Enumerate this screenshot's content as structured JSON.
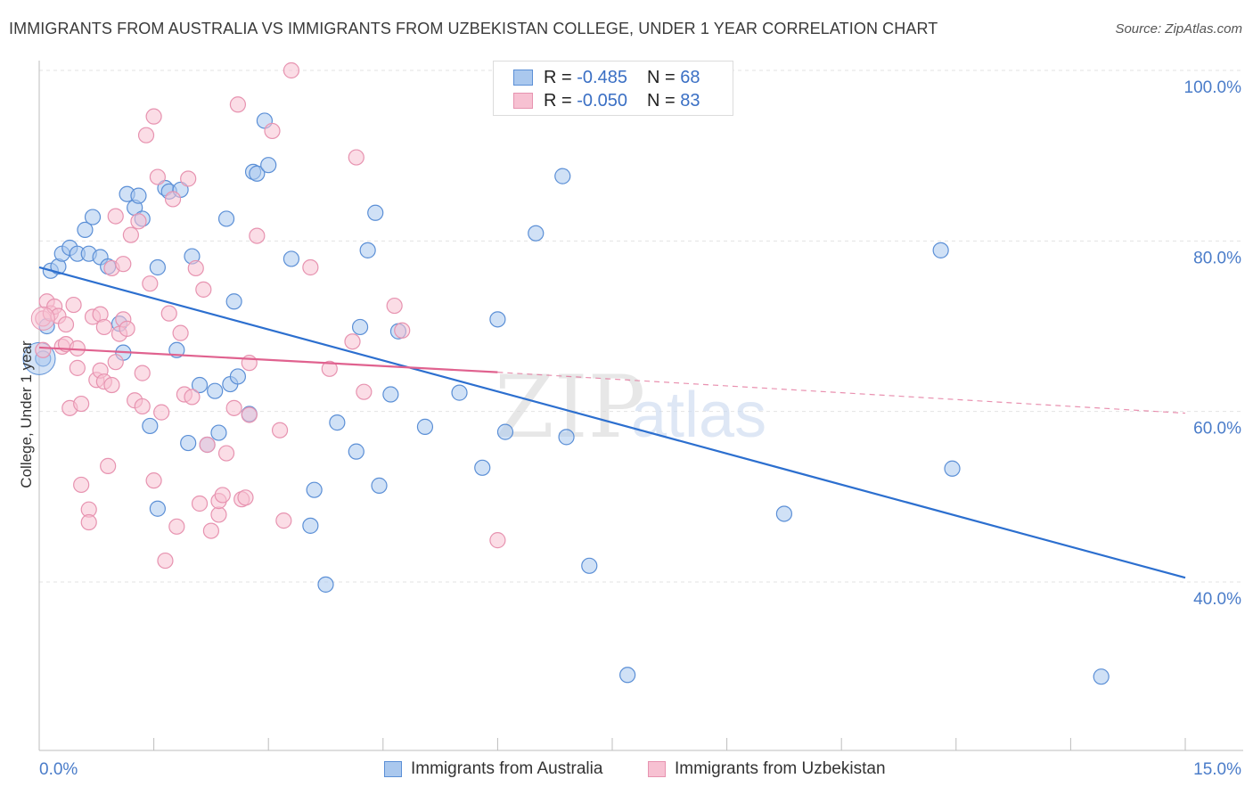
{
  "title": "IMMIGRANTS FROM AUSTRALIA VS IMMIGRANTS FROM UZBEKISTAN COLLEGE, UNDER 1 YEAR CORRELATION CHART",
  "source": "Source: ZipAtlas.com",
  "legend": {
    "australia": {
      "r_label": "R =",
      "r_value": "-0.485",
      "n_label": "N =",
      "n_value": "68"
    },
    "uzbekistan": {
      "r_label": "R =",
      "r_value": "-0.050",
      "n_label": "N =",
      "n_value": "83"
    }
  },
  "colors": {
    "australia_fill": "#aac8ee",
    "australia_stroke": "#5b8fd6",
    "australia_line": "#2c6fcf",
    "uzbekistan_fill": "#f7c1d2",
    "uzbekistan_stroke": "#e793b0",
    "uzbekistan_line": "#e0628f",
    "tick_text": "#4a7cc9"
  },
  "chart_data": {
    "type": "scatter",
    "xlabel": "",
    "ylabel": "College, Under 1 year",
    "x_tick_labels": [
      "0.0%",
      "15.0%"
    ],
    "y_tick_labels": [
      "100.0%",
      "80.0%",
      "60.0%",
      "40.0%"
    ],
    "xlim": [
      0,
      15
    ],
    "ylim": [
      22,
      102
    ],
    "grid": true,
    "legend_position": "top-center",
    "watermark": "ZIPatlas",
    "series": [
      {
        "name": "Immigrants from Australia",
        "trend": {
          "x": [
            0.0,
            15.0
          ],
          "y": [
            76.9,
            40.5
          ]
        },
        "points": [
          [
            0.05,
            66.2
          ],
          [
            0.1,
            70.0
          ],
          [
            0.15,
            76.5
          ],
          [
            0.25,
            77.0
          ],
          [
            0.3,
            78.5
          ],
          [
            0.4,
            79.2
          ],
          [
            0.5,
            78.5
          ],
          [
            0.6,
            81.3
          ],
          [
            0.65,
            78.5
          ],
          [
            0.7,
            82.8
          ],
          [
            0.8,
            78.1
          ],
          [
            0.9,
            77.0
          ],
          [
            1.05,
            70.3
          ],
          [
            1.1,
            66.9
          ],
          [
            1.15,
            85.5
          ],
          [
            1.25,
            83.9
          ],
          [
            1.3,
            85.3
          ],
          [
            1.35,
            82.6
          ],
          [
            1.45,
            58.3
          ],
          [
            1.55,
            76.9
          ],
          [
            1.55,
            48.6
          ],
          [
            1.65,
            86.2
          ],
          [
            1.7,
            85.8
          ],
          [
            1.8,
            67.2
          ],
          [
            1.85,
            86.0
          ],
          [
            1.95,
            56.3
          ],
          [
            2.0,
            78.2
          ],
          [
            2.1,
            63.1
          ],
          [
            2.2,
            56.1
          ],
          [
            2.3,
            62.4
          ],
          [
            2.35,
            57.5
          ],
          [
            2.45,
            82.6
          ],
          [
            2.5,
            63.2
          ],
          [
            2.55,
            72.9
          ],
          [
            2.6,
            64.1
          ],
          [
            2.75,
            59.7
          ],
          [
            2.8,
            88.1
          ],
          [
            2.85,
            87.9
          ],
          [
            2.95,
            94.1
          ],
          [
            3.0,
            88.9
          ],
          [
            3.3,
            77.9
          ],
          [
            3.55,
            46.6
          ],
          [
            3.6,
            50.8
          ],
          [
            3.75,
            39.7
          ],
          [
            3.9,
            58.7
          ],
          [
            4.15,
            55.3
          ],
          [
            4.2,
            69.9
          ],
          [
            4.3,
            78.9
          ],
          [
            4.4,
            83.3
          ],
          [
            4.45,
            51.3
          ],
          [
            4.6,
            62.0
          ],
          [
            4.7,
            69.4
          ],
          [
            5.05,
            58.2
          ],
          [
            5.5,
            62.2
          ],
          [
            5.8,
            53.4
          ],
          [
            6.0,
            70.8
          ],
          [
            6.1,
            57.6
          ],
          [
            6.5,
            80.9
          ],
          [
            6.85,
            87.6
          ],
          [
            6.9,
            57.0
          ],
          [
            7.2,
            41.9
          ],
          [
            7.7,
            29.1
          ],
          [
            9.75,
            48.0
          ],
          [
            11.8,
            78.9
          ],
          [
            11.95,
            53.3
          ],
          [
            13.9,
            28.9
          ]
        ]
      },
      {
        "name": "Immigrants from Uzbekistan",
        "trend": {
          "x": [
            0.0,
            6.0
          ],
          "y": [
            67.5,
            64.6
          ]
        },
        "trend_dashed": {
          "x": [
            6.0,
            15.0
          ],
          "y": [
            64.6,
            59.8
          ]
        },
        "points": [
          [
            0.05,
            70.9
          ],
          [
            0.05,
            67.2
          ],
          [
            0.1,
            72.9
          ],
          [
            0.15,
            71.5
          ],
          [
            0.2,
            72.3
          ],
          [
            0.25,
            71.2
          ],
          [
            0.3,
            67.6
          ],
          [
            0.35,
            67.9
          ],
          [
            0.35,
            70.2
          ],
          [
            0.4,
            60.4
          ],
          [
            0.45,
            72.5
          ],
          [
            0.5,
            67.4
          ],
          [
            0.5,
            65.1
          ],
          [
            0.55,
            60.9
          ],
          [
            0.55,
            51.4
          ],
          [
            0.65,
            48.5
          ],
          [
            0.65,
            47.0
          ],
          [
            0.7,
            71.1
          ],
          [
            0.75,
            63.7
          ],
          [
            0.8,
            71.4
          ],
          [
            0.8,
            64.8
          ],
          [
            0.85,
            69.9
          ],
          [
            0.85,
            63.5
          ],
          [
            0.9,
            53.6
          ],
          [
            0.95,
            76.8
          ],
          [
            0.95,
            63.1
          ],
          [
            1.0,
            82.9
          ],
          [
            1.0,
            65.8
          ],
          [
            1.05,
            69.1
          ],
          [
            1.1,
            77.3
          ],
          [
            1.1,
            70.8
          ],
          [
            1.15,
            69.7
          ],
          [
            1.2,
            80.7
          ],
          [
            1.25,
            61.3
          ],
          [
            1.3,
            82.3
          ],
          [
            1.35,
            64.5
          ],
          [
            1.35,
            60.6
          ],
          [
            1.4,
            92.4
          ],
          [
            1.45,
            75.0
          ],
          [
            1.5,
            51.9
          ],
          [
            1.5,
            94.6
          ],
          [
            1.55,
            87.5
          ],
          [
            1.6,
            59.9
          ],
          [
            1.65,
            42.5
          ],
          [
            1.7,
            71.5
          ],
          [
            1.75,
            84.9
          ],
          [
            1.8,
            46.5
          ],
          [
            1.85,
            69.2
          ],
          [
            1.9,
            62.0
          ],
          [
            1.95,
            87.3
          ],
          [
            2.0,
            61.7
          ],
          [
            2.05,
            76.8
          ],
          [
            2.1,
            49.2
          ],
          [
            2.15,
            74.3
          ],
          [
            2.2,
            56.1
          ],
          [
            2.25,
            46.0
          ],
          [
            2.35,
            47.9
          ],
          [
            2.35,
            49.5
          ],
          [
            2.4,
            50.2
          ],
          [
            2.45,
            55.1
          ],
          [
            2.55,
            60.4
          ],
          [
            2.6,
            96.0
          ],
          [
            2.65,
            49.7
          ],
          [
            2.7,
            49.9
          ],
          [
            2.75,
            59.6
          ],
          [
            2.75,
            65.7
          ],
          [
            2.85,
            80.6
          ],
          [
            3.05,
            92.9
          ],
          [
            3.15,
            57.8
          ],
          [
            3.2,
            47.2
          ],
          [
            3.3,
            100.0
          ],
          [
            3.55,
            76.9
          ],
          [
            3.8,
            65.0
          ],
          [
            4.1,
            68.2
          ],
          [
            4.15,
            89.8
          ],
          [
            4.25,
            62.3
          ],
          [
            4.65,
            72.4
          ],
          [
            4.75,
            69.5
          ],
          [
            6.0,
            44.9
          ]
        ]
      }
    ]
  },
  "bottom_legend": {
    "australia_label": "Immigrants from Australia",
    "uzbekistan_label": "Immigrants from Uzbekistan"
  }
}
